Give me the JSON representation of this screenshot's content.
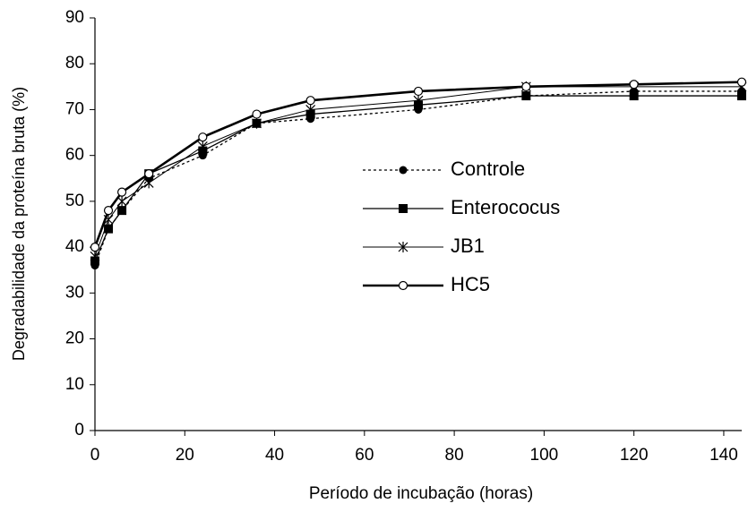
{
  "chart_data": {
    "type": "line",
    "x_label": "Período de incubação (horas)",
    "y_label": "Degradabilidade da proteína bruta (%)",
    "x": [
      0,
      3,
      6,
      12,
      24,
      36,
      48,
      72,
      96,
      120,
      144
    ],
    "xlim": [
      0,
      144
    ],
    "xticks": [
      0,
      20,
      40,
      60,
      80,
      100,
      120,
      140
    ],
    "ylim": [
      0,
      90
    ],
    "yticks": [
      0,
      10,
      20,
      30,
      40,
      50,
      60,
      70,
      80,
      90
    ],
    "grid": false,
    "legend": "center-right",
    "series": [
      {
        "name": "Controle",
        "color": "#000000",
        "dash": true,
        "width": 1.3,
        "marker": "filled-circle",
        "values": [
          36,
          44,
          48,
          55,
          60,
          67,
          68,
          70,
          73,
          74,
          74
        ]
      },
      {
        "name": "Enterococus",
        "color": "#000000",
        "dash": false,
        "width": 1.3,
        "marker": "filled-square",
        "values": [
          37,
          44,
          48,
          56,
          61,
          67,
          69,
          71,
          73,
          73,
          73
        ]
      },
      {
        "name": "JB1",
        "color": "#000000",
        "dash": false,
        "width": 1,
        "marker": "star",
        "values": [
          38,
          46,
          50,
          54,
          62,
          67,
          70,
          72,
          75,
          75,
          75
        ]
      },
      {
        "name": "HC5",
        "color": "#000000",
        "dash": false,
        "width": 2.6,
        "marker": "open-circle",
        "values": [
          40,
          48,
          52,
          56,
          64,
          69,
          72,
          74,
          75,
          75.5,
          76
        ]
      }
    ]
  }
}
